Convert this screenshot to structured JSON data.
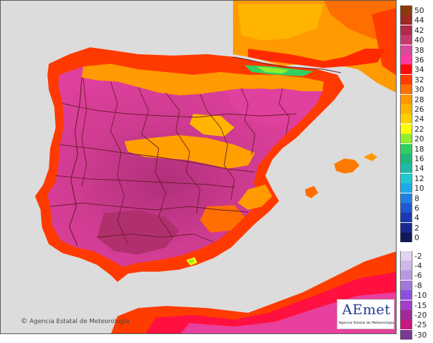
{
  "map": {
    "copyright": "Agencia Estatal de Meteorología",
    "copyright_symbol": "©",
    "logo_word": "AEmet",
    "logo_tagline": "Agencia Estatal de Meteorología",
    "sea_color": "#dcdcdc",
    "border_color": "#6b1a2a"
  },
  "legend": {
    "positive": [
      {
        "label": "50",
        "color": "#8b3a0e"
      },
      {
        "label": "44",
        "color": "#9b2a23"
      },
      {
        "label": "42",
        "color": "#b02a4a"
      },
      {
        "label": "40",
        "color": "#c83a6e"
      },
      {
        "label": "38",
        "color": "#d84a9a"
      },
      {
        "label": "36",
        "color": "#ff3aa0"
      },
      {
        "label": "34",
        "color": "#ff0a0a"
      },
      {
        "label": "32",
        "color": "#ff3c00"
      },
      {
        "label": "30",
        "color": "#ff6e00"
      },
      {
        "label": "28",
        "color": "#ff9800"
      },
      {
        "label": "26",
        "color": "#ffb400"
      },
      {
        "label": "24",
        "color": "#ffd000"
      },
      {
        "label": "22",
        "color": "#ffff00"
      },
      {
        "label": "20",
        "color": "#90ee30"
      },
      {
        "label": "18",
        "color": "#30d060"
      },
      {
        "label": "16",
        "color": "#20b878"
      },
      {
        "label": "14",
        "color": "#20b8a8"
      },
      {
        "label": "12",
        "color": "#20c8d0"
      },
      {
        "label": "10",
        "color": "#20a8e8"
      },
      {
        "label": "8",
        "color": "#2080e0"
      },
      {
        "label": "6",
        "color": "#2058d0"
      },
      {
        "label": "4",
        "color": "#1c38b0"
      },
      {
        "label": "2",
        "color": "#182890"
      },
      {
        "label": "0",
        "color": "#101858"
      }
    ],
    "negative": [
      {
        "label": "-2",
        "color": "#e0d4f0"
      },
      {
        "label": "-4",
        "color": "#cdb8e8"
      },
      {
        "label": "-6",
        "color": "#b898e0"
      },
      {
        "label": "-8",
        "color": "#a078d8"
      },
      {
        "label": "-10",
        "color": "#8c50e0"
      },
      {
        "label": "-15",
        "color": "#a040c8"
      },
      {
        "label": "-20",
        "color": "#a02898"
      },
      {
        "label": "-25",
        "color": "#c81880"
      },
      {
        "label": "-30",
        "color": "#7a3890"
      }
    ]
  }
}
